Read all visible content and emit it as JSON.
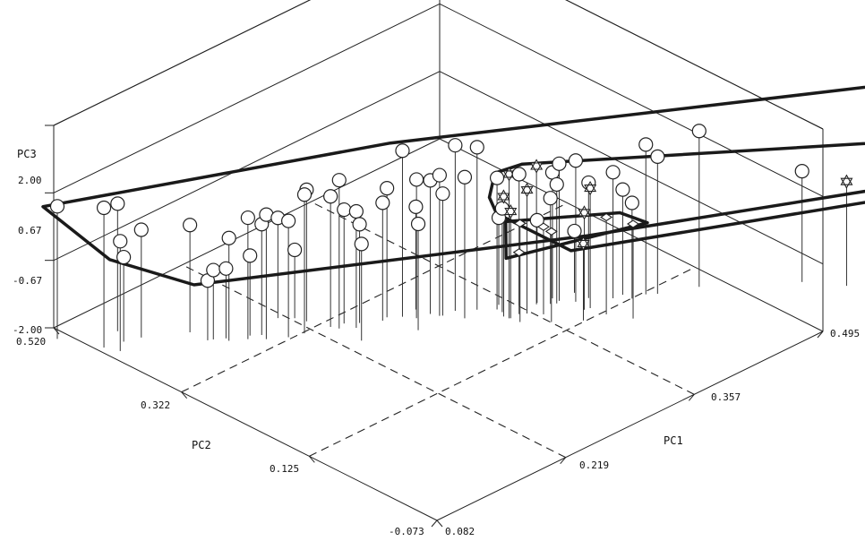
{
  "chart_data": {
    "type": "scatter",
    "projection": "3d",
    "title": "",
    "axes": {
      "pc1": {
        "label": "PC1",
        "ticks": [
          "0.082",
          "0.219",
          "0.357",
          "0.495"
        ],
        "range": [
          0.082,
          0.495
        ]
      },
      "pc2": {
        "label": "PC2",
        "ticks": [
          "-0.073",
          "0.125",
          "0.322",
          "0.520"
        ],
        "range": [
          -0.073,
          0.52
        ]
      },
      "pc3": {
        "label": "PC3",
        "ticks": [
          "-2.00",
          "-0.67",
          "0.67",
          "2.00"
        ],
        "range": [
          -2.0,
          2.0
        ]
      }
    },
    "grid": false,
    "groups": [
      {
        "marker": "circle",
        "hull": true
      },
      {
        "marker": "star",
        "hull": true
      },
      {
        "marker": "diamond",
        "hull": true
      }
    ],
    "series": [
      {
        "marker": "circle",
        "points": [
          [
            0.072,
            0.5,
            0.62
          ],
          [
            0.088,
            0.451,
            0.76
          ],
          [
            0.113,
            0.466,
            0.52
          ],
          [
            0.093,
            0.433,
            0.17
          ],
          [
            0.105,
            0.445,
            -0.33
          ],
          [
            0.119,
            0.438,
            0.13
          ],
          [
            0.151,
            0.409,
            0.12
          ],
          [
            0.199,
            0.326,
            0.3
          ],
          [
            0.185,
            0.34,
            0.46
          ],
          [
            0.175,
            0.354,
            0.4
          ],
          [
            0.163,
            0.366,
            0.03
          ],
          [
            0.156,
            0.38,
            -0.63
          ],
          [
            0.152,
            0.383,
            -0.82
          ],
          [
            0.164,
            0.372,
            -0.62
          ],
          [
            0.18,
            0.358,
            -0.42
          ],
          [
            0.187,
            0.35,
            0.19
          ],
          [
            0.233,
            0.31,
            0.58
          ],
          [
            0.236,
            0.301,
            0.93
          ],
          [
            0.246,
            0.289,
            0.3
          ],
          [
            0.212,
            0.32,
            0.74
          ],
          [
            0.226,
            0.337,
            0.6
          ],
          [
            0.244,
            0.305,
            0.25
          ],
          [
            0.253,
            0.294,
            -0.05
          ],
          [
            0.268,
            0.28,
            0.33
          ],
          [
            0.283,
            0.271,
            1.28
          ],
          [
            0.289,
            0.258,
            0.74
          ],
          [
            0.301,
            0.254,
            0.64
          ],
          [
            0.304,
            0.244,
            0.78
          ],
          [
            0.306,
            0.242,
            0.41
          ],
          [
            0.318,
            0.24,
            1.27
          ],
          [
            0.331,
            0.225,
            1.21
          ],
          [
            0.315,
            0.221,
            0.79
          ],
          [
            0.342,
            0.21,
            0.6
          ],
          [
            0.342,
            0.202,
            0.05
          ],
          [
            0.358,
            0.199,
            0.6
          ],
          [
            0.377,
            0.178,
            0.09
          ],
          [
            0.381,
            0.174,
            0.35
          ],
          [
            0.385,
            0.176,
            0.71
          ],
          [
            0.393,
            0.162,
            0.79
          ],
          [
            0.439,
            0.12,
            0.96
          ],
          [
            0.427,
            0.124,
            -0.11
          ],
          [
            0.476,
            0.091,
            1.08
          ],
          [
            0.537,
            0.02,
            0.19
          ],
          [
            0.584,
            -0.021,
            -0.19
          ],
          [
            0.612,
            -0.021,
            -0.48
          ],
          [
            0.715,
            -0.115,
            1.52
          ],
          [
            0.298,
            0.272,
            0.03
          ],
          [
            0.348,
            0.216,
            -0.28
          ],
          [
            0.371,
            0.19,
            -0.37
          ],
          [
            0.404,
            0.158,
            0.28
          ],
          [
            0.417,
            0.139,
            0.49
          ],
          [
            0.426,
            0.137,
            0.08
          ],
          [
            0.446,
            0.112,
            0.71
          ],
          [
            0.277,
            0.238,
            0.1
          ],
          [
            0.402,
            0.177,
            -0.78
          ],
          [
            0.384,
            0.185,
            0.49
          ],
          [
            0.214,
            0.364,
            -0.02
          ],
          [
            0.223,
            0.351,
            -0.65
          ],
          [
            0.274,
            0.282,
            0.55
          ],
          [
            0.235,
            0.265,
            -0.09
          ]
        ]
      },
      {
        "marker": "star",
        "points": [
          [
            0.354,
            0.181,
            0.44
          ],
          [
            0.339,
            0.187,
            0.85
          ],
          [
            0.338,
            0.194,
            0.37
          ],
          [
            0.34,
            0.186,
            0.11
          ],
          [
            0.369,
            0.188,
            0.73
          ],
          [
            0.377,
            0.127,
            -0.48
          ],
          [
            0.389,
            0.143,
            -0.08
          ],
          [
            0.394,
            0.141,
            0.37
          ],
          [
            0.557,
            -0.02,
            0.06
          ],
          [
            0.579,
            -0.044,
            -0.28
          ],
          [
            0.81,
            -0.263,
            0.51
          ]
        ]
      },
      {
        "marker": "diamond",
        "points": [
          [
            0.341,
            0.173,
            -0.05
          ],
          [
            0.349,
            0.186,
            -0.78
          ],
          [
            0.358,
            0.149,
            -0.21
          ],
          [
            0.396,
            0.119,
            -0.08
          ],
          [
            0.406,
            0.092,
            -0.13
          ],
          [
            0.362,
            0.167,
            -0.27
          ]
        ]
      }
    ]
  }
}
